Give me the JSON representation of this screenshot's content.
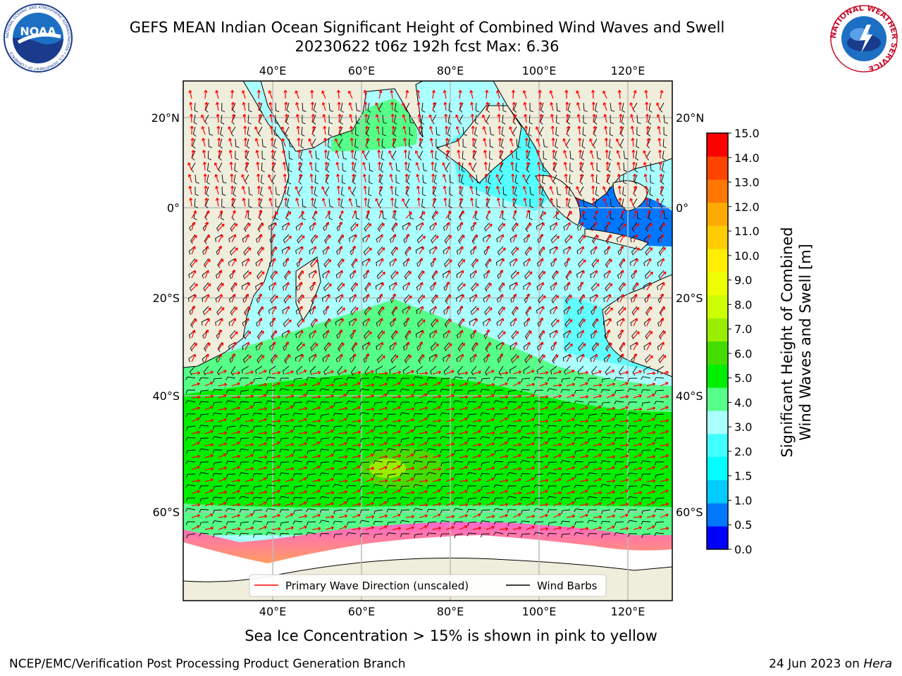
{
  "title": "GEFS MEAN Indian Ocean Significant Height of Combined Wind Waves and Swell",
  "subtitle": "20230622 t06z 192h fcst    Max: 6.36",
  "caption": "Sea Ice Concentration > 15% is shown in pink to yellow",
  "footer_left": "NCEP/EMC/Verification Post Processing Product Generation Branch",
  "footer_right_date": "24 Jun 2023 on",
  "footer_right_host": "Hera",
  "logos": {
    "noaa": "NOAA",
    "noaa_ring": "NATIONAL OCEANIC AND ATMOSPHERIC ADMINISTRATION • U.S. DEPARTMENT OF COMMERCE",
    "nws_ring": "NATIONAL WEATHER SERVICE"
  },
  "map": {
    "lon_ticks": [
      "40°E",
      "60°E",
      "80°E",
      "100°E",
      "120°E"
    ],
    "lat_ticks_left": [
      "20°N",
      "0°",
      "20°S",
      "40°S",
      "60°S"
    ],
    "lat_ticks_right": [
      "20°N",
      "0°",
      "20°S",
      "40°S",
      "60°S"
    ],
    "extent": {
      "lon": [
        20,
        130
      ],
      "lat": [
        -70,
        27
      ]
    },
    "colors": {
      "land": "#efeddb",
      "ice_free_ocean": "#ffffff",
      "wave_arrow": "#ff0000",
      "wind_barb": "#000000"
    }
  },
  "legend": {
    "items": [
      {
        "label": "Primary Wave Direction (unscaled)",
        "color": "#ff0000"
      },
      {
        "label": "Wind Barbs",
        "color": "#000000"
      }
    ]
  },
  "colorbar": {
    "label_line1": "Significant Height of Combined",
    "label_line2": "Wind Waves and Swell [m]",
    "ticks": [
      "0.0",
      "0.5",
      "1.0",
      "1.5",
      "2.0",
      "3.0",
      "4.0",
      "5.0",
      "6.0",
      "7.0",
      "8.0",
      "9.0",
      "10.0",
      "11.0",
      "12.0",
      "13.0",
      "14.0",
      "15.0"
    ],
    "colors": [
      "#0000ff",
      "#0077ff",
      "#00ccff",
      "#00ffff",
      "#40ffff",
      "#aaffff",
      "#55ff88",
      "#00ee00",
      "#44dd00",
      "#99ee00",
      "#ccff00",
      "#eeff00",
      "#ffee00",
      "#ffcc00",
      "#ffaa00",
      "#ff7700",
      "#ff4400",
      "#ff0000"
    ]
  }
}
